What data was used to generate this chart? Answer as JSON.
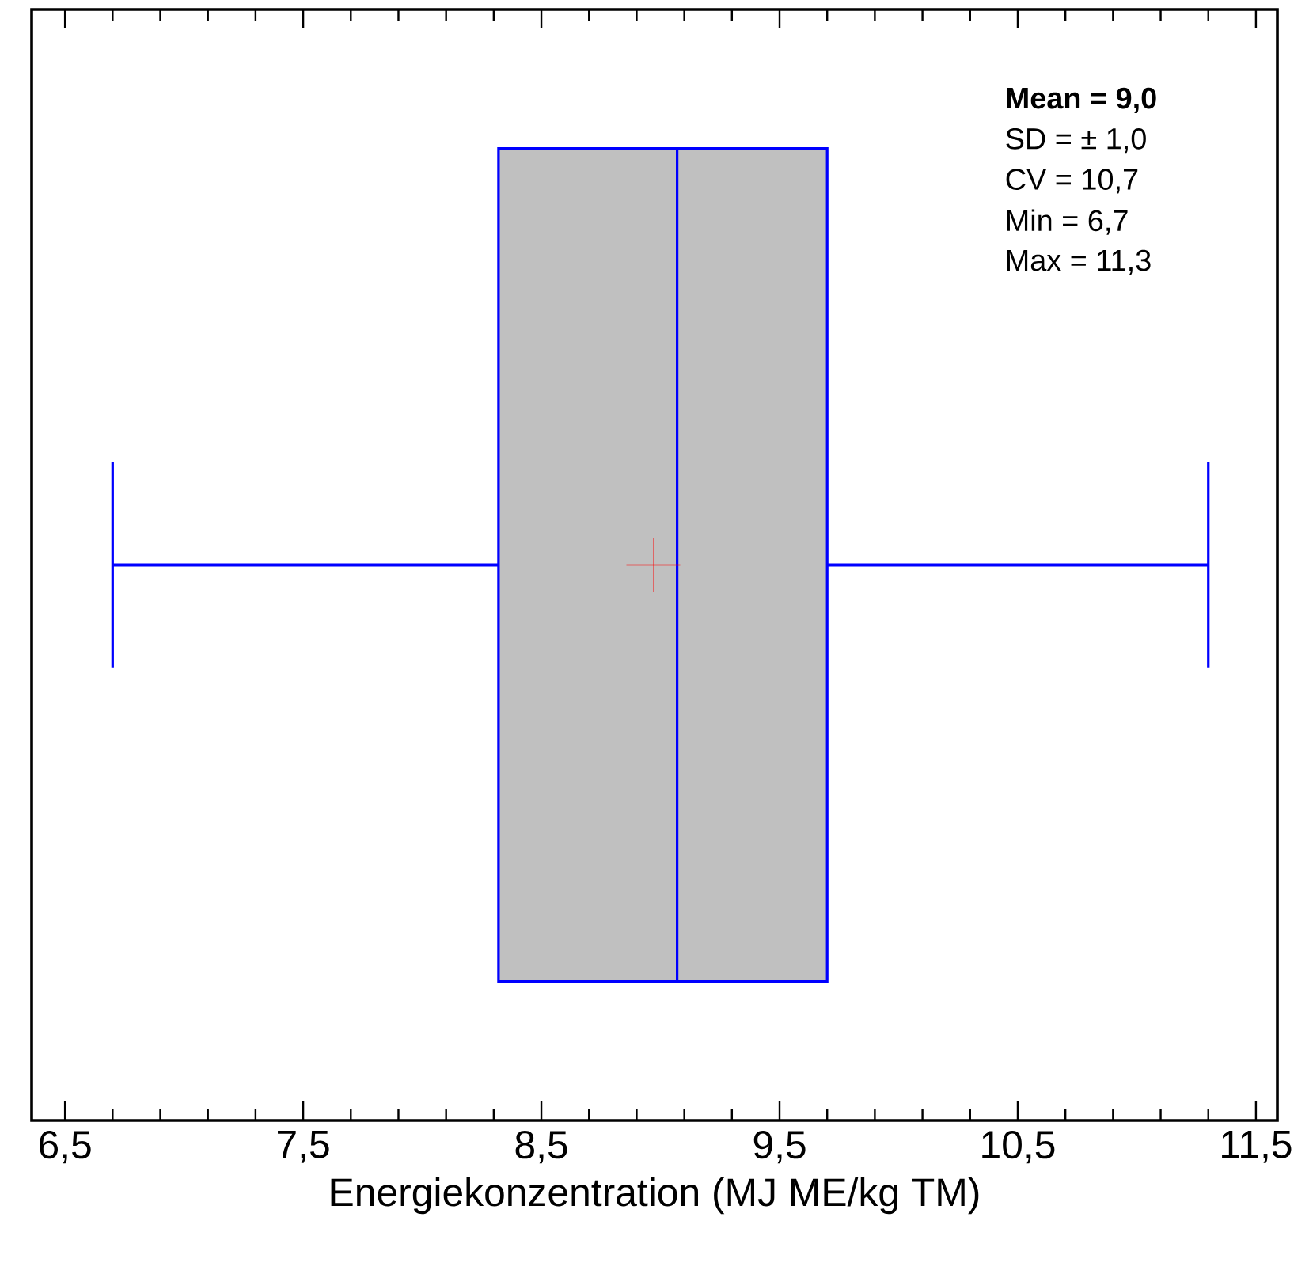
{
  "chart_data": {
    "type": "box",
    "orientation": "horizontal",
    "categories": [
      null
    ],
    "boxes": [
      {
        "low": 6.7,
        "q1": 8.32,
        "median": 9.07,
        "q3": 9.7,
        "high": 11.3,
        "mean": 8.97
      }
    ],
    "color": "#0000ff",
    "xlabel": "Energiekonzentration (MJ ME/kg TM)",
    "xlim": [
      6.36,
      11.59
    ],
    "xticks": [
      {
        "value": 6.5,
        "label": "6,5"
      },
      {
        "value": 7.5,
        "label": "7,5"
      },
      {
        "value": 8.5,
        "label": "8,5"
      },
      {
        "value": 9.5,
        "label": "9,5"
      },
      {
        "value": 10.5,
        "label": "10,5"
      },
      {
        "value": 11.5,
        "label": "11,5"
      }
    ],
    "annotations": [
      "Mean = 9,0",
      "SD = ± 1,0",
      "CV = 10,7",
      "Min = 6,7",
      "Max = 11,3"
    ]
  }
}
